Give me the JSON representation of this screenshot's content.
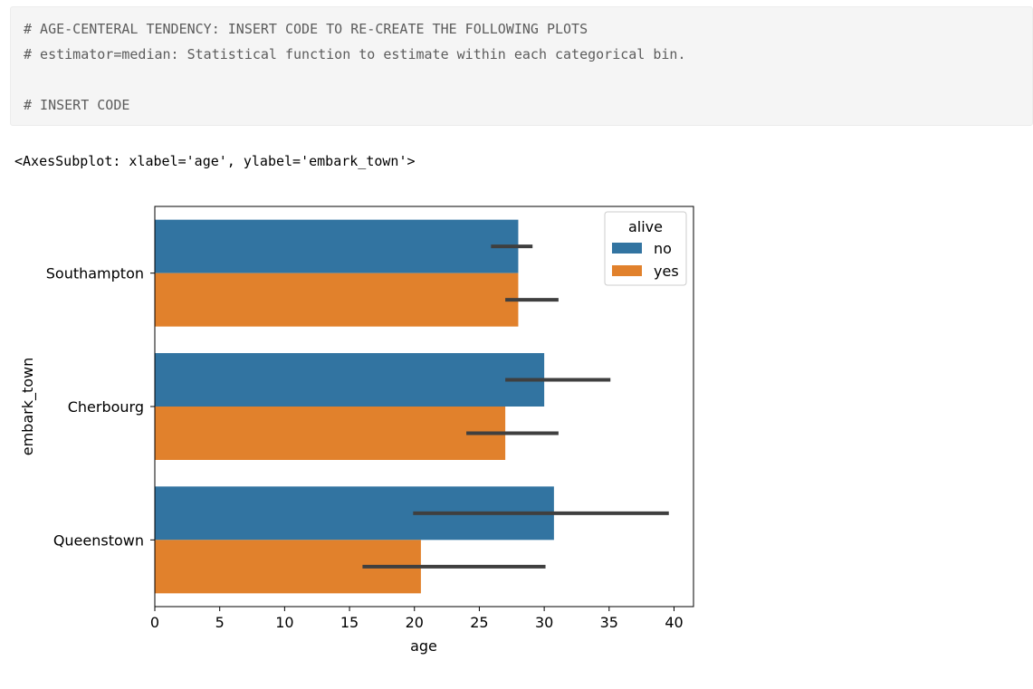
{
  "code_cell": {
    "lines": [
      "# AGE-CENTERAL TENDENCY: INSERT CODE TO RE-CREATE THE FOLLOWING PLOTS",
      "# estimator=median: Statistical function to estimate within each categorical bin.",
      "",
      "# INSERT CODE"
    ]
  },
  "output": {
    "repr": "<AxesSubplot: xlabel='age', ylabel='embark_town'>"
  },
  "chart_data": {
    "type": "bar",
    "orientation": "horizontal",
    "categories": [
      "Southampton",
      "Cherbourg",
      "Queenstown"
    ],
    "xlabel": "age",
    "ylabel": "embark_town",
    "xlim": [
      0,
      41.5
    ],
    "xticks": [
      0,
      5,
      10,
      15,
      20,
      25,
      30,
      35,
      40
    ],
    "legend": {
      "title": "alive",
      "placement": "upper right"
    },
    "series": [
      {
        "name": "no",
        "color": "#3274a1",
        "values": [
          28,
          30,
          30.75
        ],
        "ci": [
          [
            25.9,
            29.1
          ],
          [
            27,
            35.1
          ],
          [
            19.9,
            39.6
          ]
        ]
      },
      {
        "name": "yes",
        "color": "#e1812c",
        "values": [
          28,
          27,
          20.5
        ],
        "ci": [
          [
            27,
            31.1
          ],
          [
            24,
            31.1
          ],
          [
            16,
            30.1
          ]
        ]
      }
    ],
    "errorbar_color": "#3f3f3f"
  }
}
